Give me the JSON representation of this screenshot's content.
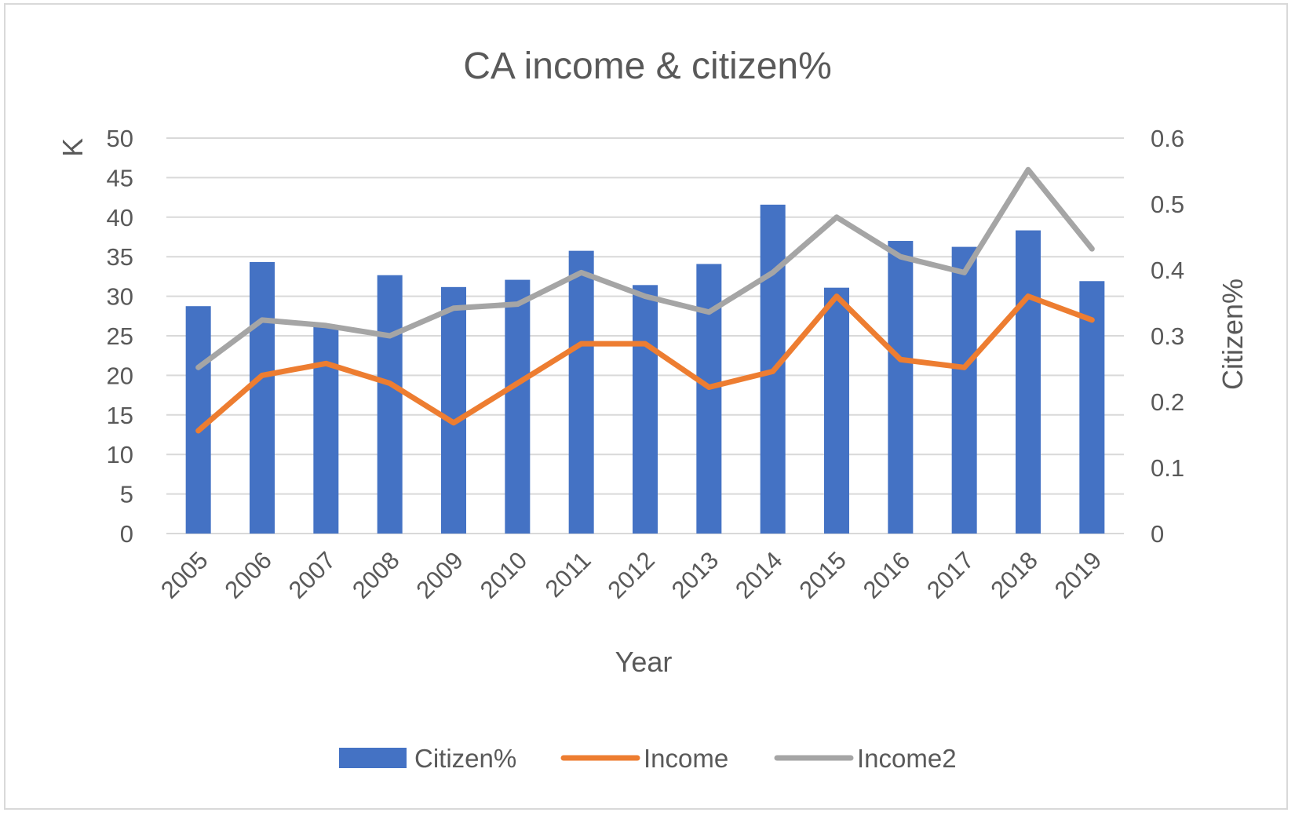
{
  "chart_data": {
    "type": "bar",
    "title": "CA  income & citizen%",
    "xlabel": "Year",
    "ylabel": "K",
    "y2label": "Citizen%",
    "categories": [
      "2005",
      "2006",
      "2007",
      "2008",
      "2009",
      "2010",
      "2011",
      "2012",
      "2013",
      "2014",
      "2015",
      "2016",
      "2017",
      "2018",
      "2019"
    ],
    "ylim": [
      0,
      50
    ],
    "y2lim": [
      0,
      0.6
    ],
    "yticks": [
      "0",
      "5",
      "10",
      "15",
      "20",
      "25",
      "30",
      "35",
      "40",
      "45",
      "50"
    ],
    "y2ticks": [
      "0",
      "0.1",
      "0.2",
      "0.3",
      "0.4",
      "0.5",
      "0.6"
    ],
    "grid": true,
    "legend_position": "bottom",
    "series": [
      {
        "name": "Citizen%",
        "type": "bar",
        "axis": "right",
        "color": "#4472C4",
        "values": [
          0.345,
          0.412,
          0.315,
          0.392,
          0.374,
          0.385,
          0.429,
          0.377,
          0.409,
          0.499,
          0.373,
          0.444,
          0.435,
          0.46,
          0.383
        ]
      },
      {
        "name": "Income",
        "type": "line",
        "axis": "left",
        "color": "#ED7D31",
        "values": [
          13,
          20,
          21.5,
          19,
          14,
          19,
          24,
          24,
          18.5,
          20.5,
          30,
          22,
          21,
          30,
          27
        ]
      },
      {
        "name": "Income2",
        "type": "line",
        "axis": "left",
        "color": "#A5A5A5",
        "values": [
          21,
          27,
          26.3,
          25,
          28.5,
          29,
          33,
          30,
          28,
          33,
          40,
          35,
          33,
          46,
          36
        ]
      }
    ]
  }
}
